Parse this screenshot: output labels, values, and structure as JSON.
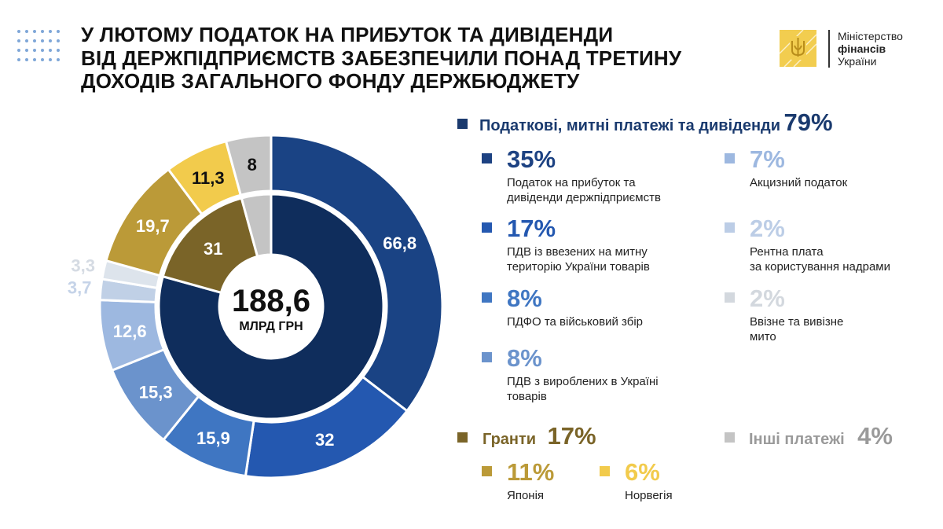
{
  "title": [
    "У ЛЮТОМУ ПОДАТОК НА ПРИБУТОК ТА ДИВІДЕНДИ",
    "ВІД ДЕРЖПІДПРИЄМСТВ ЗАБЕЗПЕЧИЛИ ПОНАД ТРЕТИНУ",
    "ДОХОДІВ ЗАГАЛЬНОГО ФОНДУ ДЕРЖБЮДЖЕТУ"
  ],
  "logo": {
    "line1": "Міністерство",
    "line2": "фінансів",
    "line3": "України"
  },
  "center": {
    "total": "188,6",
    "unit": "МЛРД ГРН"
  },
  "legend": {
    "taxes": {
      "label": "Податкові, митні платежі та дивіденди",
      "pct": "79%",
      "color": "#1a3a6e",
      "items": [
        {
          "pct": "35%",
          "desc": [
            "Податок на прибуток та",
            "дивіденди держпідприємств"
          ],
          "color": "#1d4282"
        },
        {
          "pct": "17%",
          "desc": [
            "ПДВ із ввезених на митну",
            "територію України товарів"
          ],
          "color": "#2458b0"
        },
        {
          "pct": "8%",
          "desc": [
            "ПДФО та військовий збір"
          ],
          "color": "#3f76c2"
        },
        {
          "pct": "8%",
          "desc": [
            "ПДВ з вироблених в Україні",
            "товарів"
          ],
          "color": "#6b93cc"
        },
        {
          "pct": "7%",
          "desc": [
            "Акцизний податок"
          ],
          "color": "#9db8e0"
        },
        {
          "pct": "2%",
          "desc": [
            "Рентна плата",
            "за користування надрами"
          ],
          "color": "#bccde6"
        },
        {
          "pct": "2%",
          "desc": [
            "Ввізне та вивізне",
            "мито"
          ],
          "color": "#d3d8de"
        }
      ]
    },
    "grants": {
      "label": "Гранти",
      "pct": "17%",
      "color": "#7a6428",
      "items": [
        {
          "pct": "11%",
          "desc": [
            "Японія"
          ],
          "color": "#bb9a38"
        },
        {
          "pct": "6%",
          "desc": [
            "Норвегія"
          ],
          "color": "#f2cb4c"
        }
      ]
    },
    "other": {
      "label": "Інші платежі",
      "pct": "4%",
      "color": "#9a9a9a",
      "square": "#c4c4c4"
    }
  },
  "chart_data": {
    "type": "pie",
    "subtype": "nested-donut",
    "unit": "МЛРД ГРН",
    "total": 188.6,
    "outer": {
      "labels": [
        "66,8",
        "32",
        "15,9",
        "15,3",
        "12,6",
        "3,7",
        "3,3",
        "19,7",
        "11,3",
        "8"
      ],
      "values": [
        66.8,
        32,
        15.9,
        15.3,
        12.6,
        3.7,
        3.3,
        19.7,
        11.3,
        8
      ],
      "colors": [
        "#1a4384",
        "#2458b0",
        "#3f76c2",
        "#6b93cc",
        "#9db8e0",
        "#c0d0e6",
        "#dde4ec",
        "#bb9a38",
        "#f2cb4c",
        "#c4c4c4"
      ],
      "label_colors": [
        "#fff",
        "#fff",
        "#fff",
        "#fff",
        "#fff",
        "#c5d3e8",
        "#d5dbe3",
        "#fff",
        "#111",
        "#111"
      ]
    },
    "inner": {
      "labels": [
        "",
        "31",
        ""
      ],
      "values": [
        149.6,
        31,
        8
      ],
      "colors": [
        "#0f2d5c",
        "#7a6428",
        "#c4c4c4"
      ],
      "label_colors": [
        "#fff",
        "#fff",
        "#111"
      ]
    }
  }
}
